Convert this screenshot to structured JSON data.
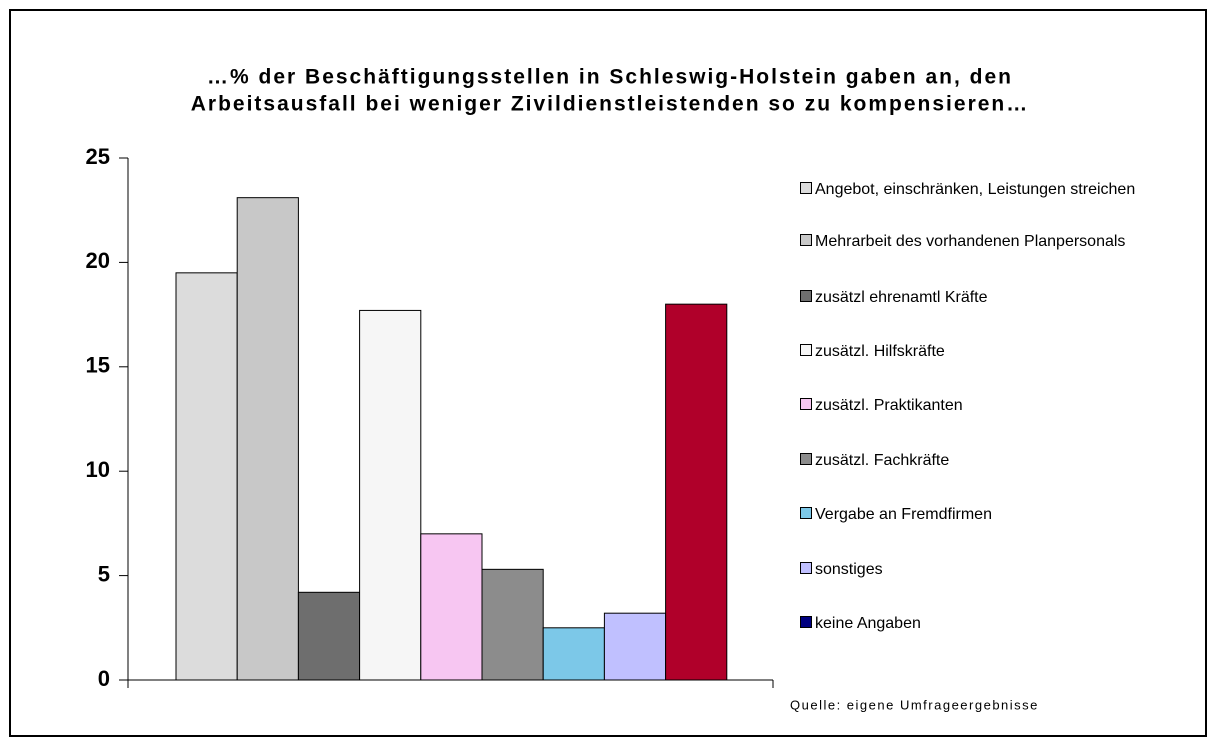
{
  "chart_data": {
    "type": "bar",
    "title": [
      "…% der Beschäftigungsstellen in Schleswig-Holstein gaben an, den",
      "Arbeitsausfall bei weniger Zivildienstleistenden so zu kompensieren…"
    ],
    "series": [
      {
        "name": "Angebot, einschränken, Leistungen streichen",
        "color": "#dcdcdc",
        "values": [
          19.5
        ]
      },
      {
        "name": "Mehrarbeit des vorhandenen Planpersonals",
        "color": "#c8c8c8",
        "values": [
          23.1
        ]
      },
      {
        "name": "zusätzl ehrenamtl Kräfte",
        "color": "#6e6e6e",
        "values": [
          4.2
        ]
      },
      {
        "name": "zusätzl. Hilfskräfte",
        "color": "#f6f6f6",
        "values": [
          17.7
        ]
      },
      {
        "name": "zusätzl. Praktikanten",
        "color": "#f7c6f2",
        "values": [
          7.0
        ]
      },
      {
        "name": "zusätzl. Fachkräfte",
        "color": "#8c8c8c",
        "values": [
          5.3
        ]
      },
      {
        "name": "Vergabe an Fremdfirmen",
        "color": "#7cc8e8",
        "values": [
          2.5
        ]
      },
      {
        "name": "sonstiges",
        "color": "#c0c0ff",
        "values": [
          3.2
        ]
      },
      {
        "name": "keine Angaben",
        "color": "#b0002a",
        "legend_color": "#00007f",
        "values": [
          18.0
        ]
      }
    ],
    "ylim": [
      0,
      25
    ],
    "yticks": [
      0,
      5,
      10,
      15,
      20,
      25
    ],
    "source": "Quelle: eigene Umfrageergebnisse"
  }
}
